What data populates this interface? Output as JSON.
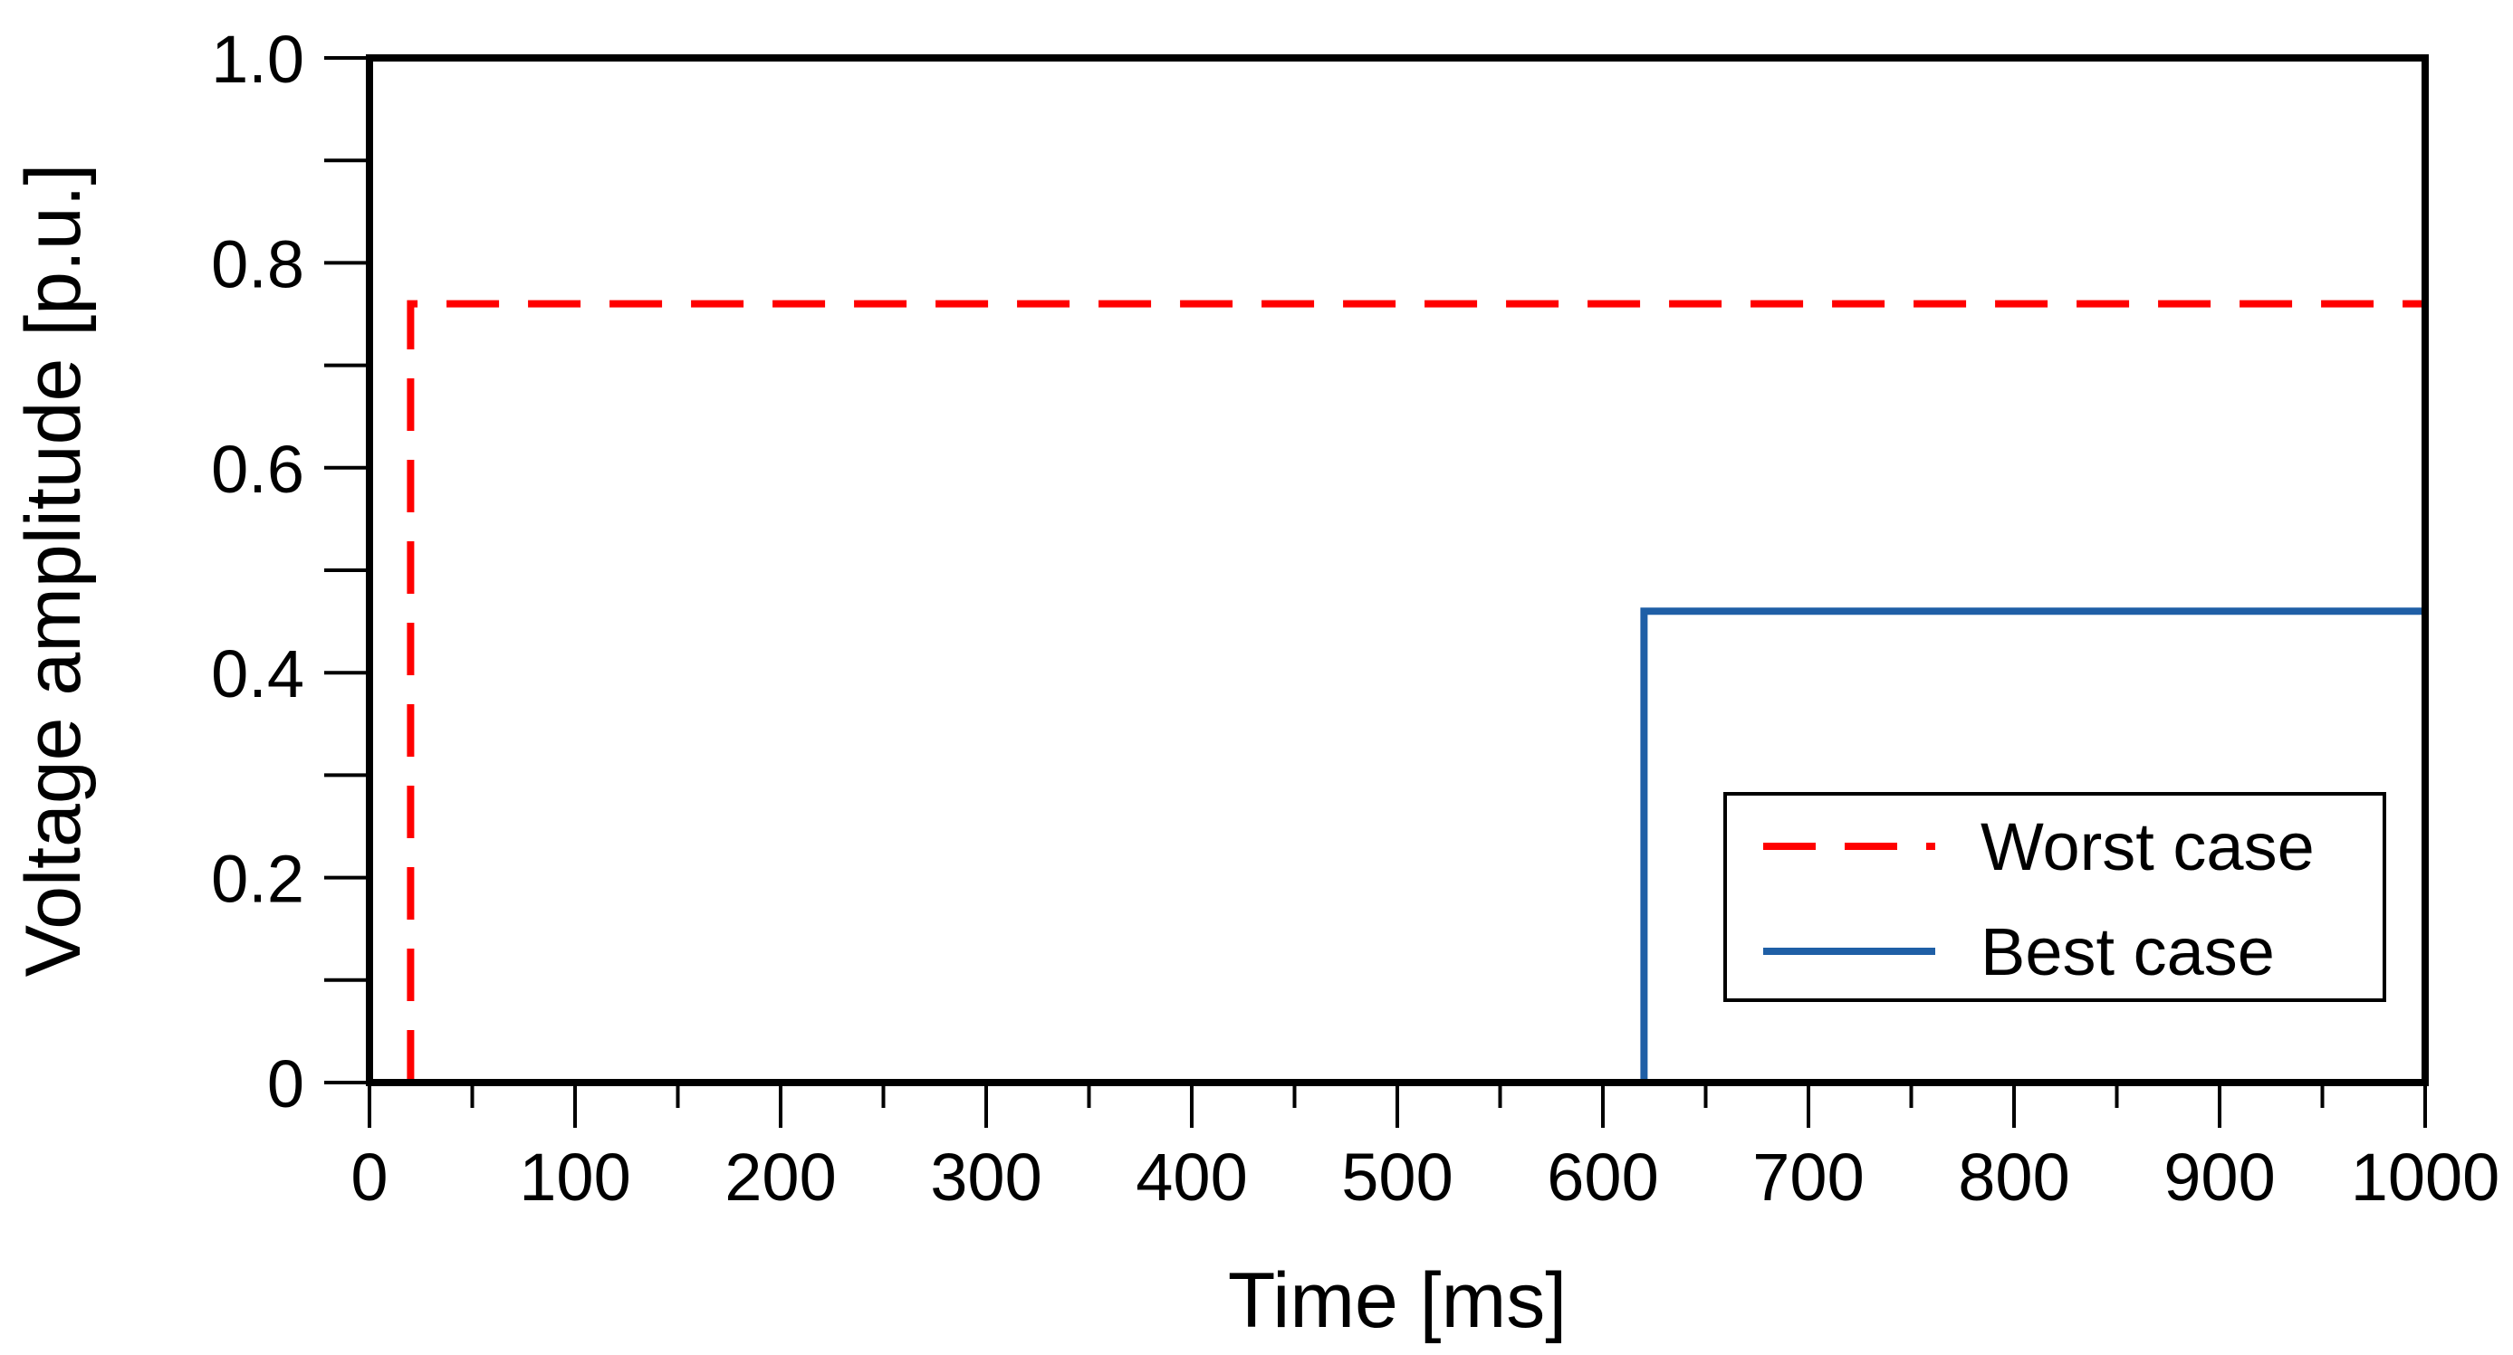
{
  "chart_data": {
    "type": "line",
    "xlabel": "Time [ms]",
    "ylabel": "Voltage amplitude [p.u.]",
    "xlim": [
      0,
      1000
    ],
    "ylim": [
      0,
      1.0
    ],
    "x_ticks": [
      0,
      100,
      200,
      300,
      400,
      500,
      600,
      700,
      800,
      900,
      1000
    ],
    "x_tick_labels": [
      "0",
      "100",
      "200",
      "300",
      "400",
      "500",
      "600",
      "700",
      "800",
      "900",
      "1000"
    ],
    "y_ticks": [
      0,
      0.2,
      0.4,
      0.6,
      0.8,
      1.0
    ],
    "y_tick_labels": [
      "0",
      "0.2",
      "0.4",
      "0.6",
      "0.8",
      "1.0"
    ],
    "y_minor_ticks": [
      0.1,
      0.3,
      0.5,
      0.7,
      0.9
    ],
    "x_minor_ticks": [
      50,
      150,
      250,
      350,
      450,
      550,
      650,
      750,
      850,
      950
    ],
    "grid": false,
    "legend_position": "bottom-right",
    "series": [
      {
        "name": "Worst case",
        "color": "#ff0000",
        "style": "dashed",
        "x": [
          20,
          20,
          1000
        ],
        "y": [
          0,
          0.76,
          0.76
        ]
      },
      {
        "name": "Best case",
        "color": "#1f5fa6",
        "style": "solid",
        "x": [
          620,
          620,
          1000
        ],
        "y": [
          0,
          0.46,
          0.46
        ]
      }
    ]
  }
}
